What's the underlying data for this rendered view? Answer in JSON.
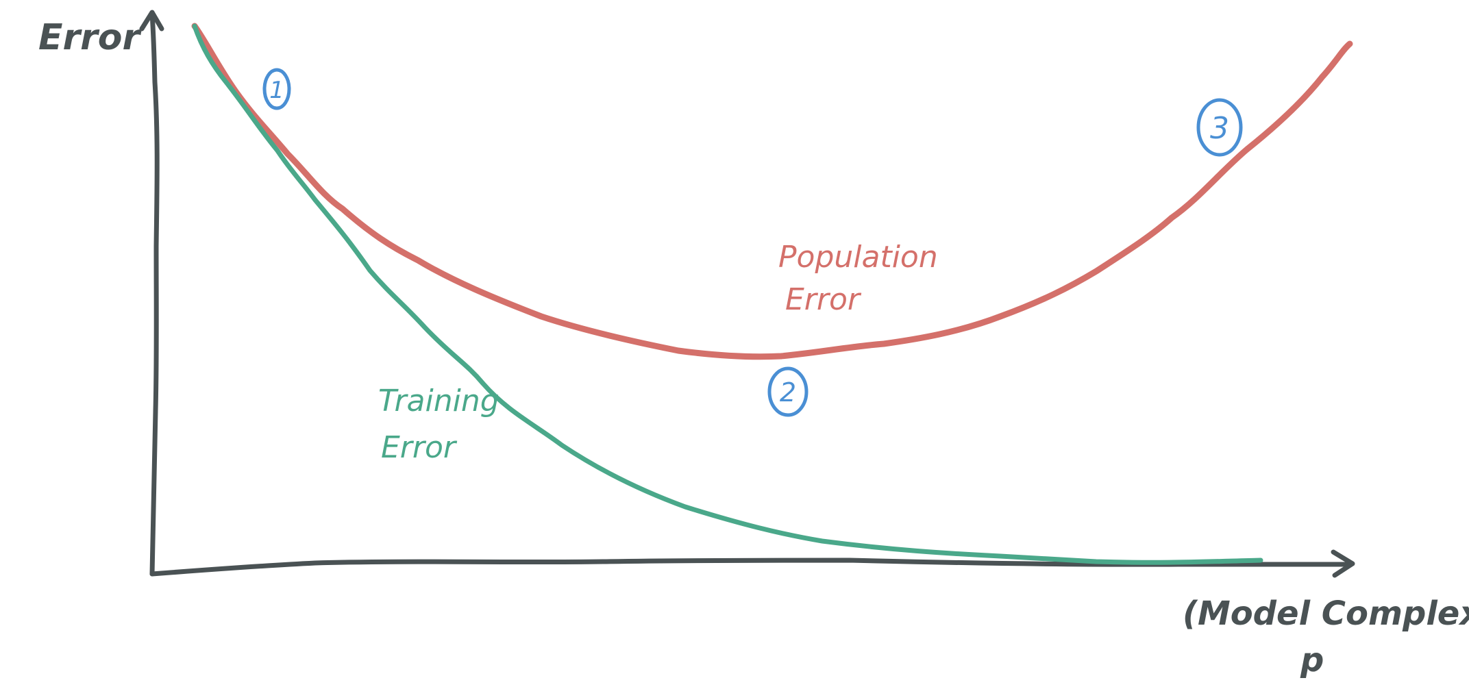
{
  "colors": {
    "axis": "#4a5254",
    "population_error": "#d4706a",
    "training_error": "#4aa88a",
    "markers": "#4a8fd4",
    "background": "#ffffff"
  },
  "axes": {
    "y_label": "Error",
    "x_label": "(Model Complexity)",
    "x_sublabel": "p"
  },
  "curves": {
    "population": {
      "label_line1": "Population",
      "label_line2": "Error"
    },
    "training": {
      "label_line1": "Training",
      "label_line2": "Error"
    }
  },
  "markers": [
    {
      "label": "1"
    },
    {
      "label": "2"
    },
    {
      "label": "3"
    }
  ]
}
